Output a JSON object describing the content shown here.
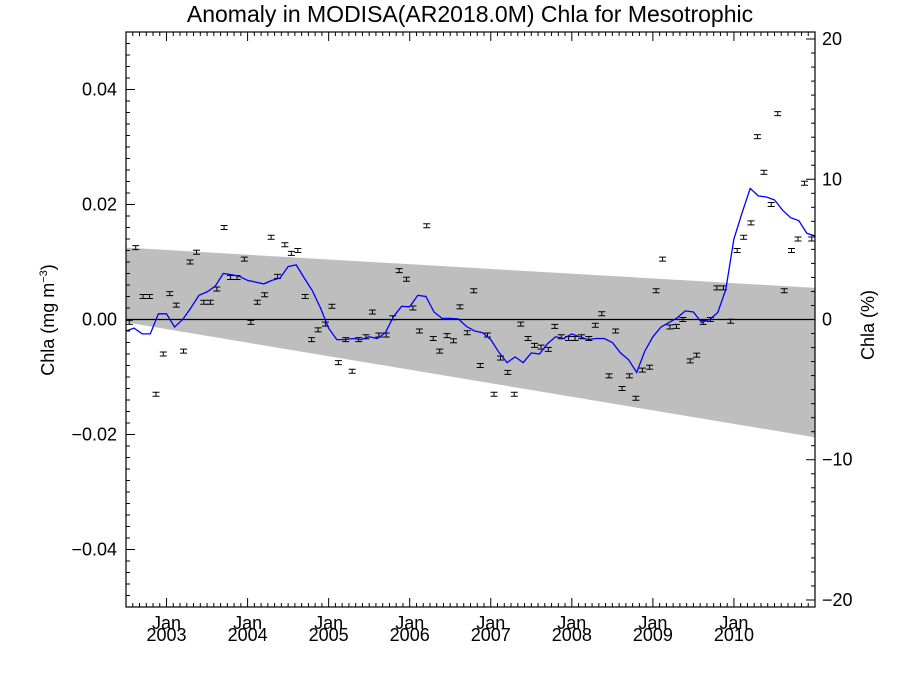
{
  "chart_data": {
    "type": "line",
    "title": "Anomaly in MODISA(AR2018.0M) Chla for Mesotrophic",
    "ylabel_left": {
      "main": "Chla (mg m",
      "sup": "−3",
      "end": ")"
    },
    "ylabel_right": "Chla (%)",
    "xlim": [
      2002.5,
      2011.0
    ],
    "ylim_left": [
      -0.05,
      0.05
    ],
    "ylim_right": [
      -20.5,
      20.5
    ],
    "y_left_ticks": [
      0.04,
      0.02,
      0.0,
      -0.02,
      -0.04
    ],
    "y_left_tick_labels": [
      "0.04",
      "0.02",
      "0.00",
      "−0.02",
      "−0.04"
    ],
    "y_right_ticks": [
      20,
      10,
      0,
      -10,
      -20
    ],
    "y_right_tick_labels": [
      "20",
      "10",
      "0",
      "−10",
      "−20"
    ],
    "x_ticks": [
      2003,
      2004,
      2005,
      2006,
      2007,
      2008,
      2009,
      2010
    ],
    "x_tick_months": [
      "Jan",
      "Jan",
      "Jan",
      "Jan",
      "Jan",
      "Jan",
      "Jan",
      "Jan"
    ],
    "x_tick_years": [
      "2003",
      "2004",
      "2005",
      "2006",
      "2007",
      "2008",
      "2009",
      "2010"
    ],
    "band": {
      "left": [
        0.0125,
        -0.0005
      ],
      "right": [
        0.0055,
        -0.0205
      ]
    },
    "colors": {
      "line": "#0000ff",
      "band": "#bebebe",
      "points": "#000000"
    },
    "series": [
      {
        "kind": "monthly-points",
        "x": [
          2002.54,
          2002.62,
          2002.71,
          2002.79,
          2002.87,
          2002.96,
          2003.04,
          2003.12,
          2003.21,
          2003.29,
          2003.37,
          2003.46,
          2003.54,
          2003.62,
          2003.71,
          2003.79,
          2003.87,
          2003.96,
          2004.04,
          2004.12,
          2004.21,
          2004.29,
          2004.37,
          2004.46,
          2004.54,
          2004.62,
          2004.71,
          2004.79,
          2004.87,
          2004.96,
          2005.04,
          2005.12,
          2005.21,
          2005.29,
          2005.37,
          2005.46,
          2005.54,
          2005.62,
          2005.71,
          2005.79,
          2005.87,
          2005.96,
          2006.04,
          2006.12,
          2006.21,
          2006.29,
          2006.37,
          2006.46,
          2006.54,
          2006.62,
          2006.71,
          2006.79,
          2006.87,
          2006.96,
          2007.04,
          2007.12,
          2007.21,
          2007.29,
          2007.37,
          2007.46,
          2007.54,
          2007.62,
          2007.71,
          2007.79,
          2007.87,
          2007.96,
          2008.04,
          2008.12,
          2008.21,
          2008.29,
          2008.37,
          2008.46,
          2008.54,
          2008.62,
          2008.71,
          2008.79,
          2008.87,
          2008.96,
          2009.04,
          2009.12,
          2009.21,
          2009.29,
          2009.37,
          2009.46,
          2009.54,
          2009.62,
          2009.71,
          2009.79,
          2009.87,
          2009.96,
          2010.04,
          2010.12,
          2010.21,
          2010.29,
          2010.37,
          2010.46,
          2010.54,
          2010.62,
          2010.71,
          2010.79,
          2010.87,
          2010.96
        ],
        "y": [
          -0.0005,
          0.0125,
          0.004,
          0.004,
          -0.013,
          -0.006,
          0.0045,
          0.0025,
          -0.0055,
          0.01,
          0.0117,
          0.003,
          0.003,
          0.0053,
          0.016,
          0.0073,
          0.0073,
          0.0105,
          -0.0005,
          0.003,
          0.0043,
          0.0143,
          0.0075,
          0.013,
          0.0115,
          0.012,
          0.004,
          -0.0035,
          -0.0018,
          -0.0008,
          0.0023,
          -0.0075,
          -0.0035,
          -0.009,
          -0.0035,
          -0.003,
          0.0013,
          -0.0027,
          -0.0027,
          0.0003,
          0.0085,
          0.007,
          0.002,
          -0.002,
          0.0163,
          -0.0033,
          -0.0055,
          -0.0028,
          -0.0037,
          0.0022,
          -0.0023,
          0.005,
          -0.008,
          -0.0027,
          -0.013,
          -0.0067,
          -0.0092,
          -0.013,
          -0.0008,
          -0.0033,
          -0.0045,
          -0.0048,
          -0.0052,
          -0.0012,
          -0.003,
          -0.0033,
          -0.0033,
          -0.003,
          -0.0033,
          -0.001,
          0.001,
          -0.0098,
          -0.002,
          -0.012,
          -0.0098,
          -0.0137,
          -0.0088,
          -0.0083,
          0.005,
          0.0105,
          -0.0013,
          -0.0012,
          0.0,
          -0.0072,
          -0.0062,
          -0.0005,
          0.0,
          0.0055,
          0.0055,
          -0.0003,
          0.012,
          0.0143,
          0.0168,
          0.0318,
          0.0256,
          0.02,
          0.0358,
          0.005,
          0.012,
          0.014,
          0.0237,
          0.014
        ]
      },
      {
        "kind": "running-mean",
        "x": [
          2002.5,
          2002.6,
          2002.7,
          2002.8,
          2002.9,
          2003.0,
          2003.1,
          2003.2,
          2003.3,
          2003.4,
          2003.5,
          2003.6,
          2003.7,
          2003.8,
          2003.9,
          2004.0,
          2004.1,
          2004.2,
          2004.3,
          2004.4,
          2004.5,
          2004.6,
          2004.7,
          2004.8,
          2004.9,
          2005.0,
          2005.1,
          2005.2,
          2005.3,
          2005.4,
          2005.5,
          2005.6,
          2005.7,
          2005.8,
          2005.9,
          2006.0,
          2006.1,
          2006.2,
          2006.3,
          2006.4,
          2006.5,
          2006.6,
          2006.7,
          2006.8,
          2006.9,
          2007.0,
          2007.1,
          2007.2,
          2007.3,
          2007.4,
          2007.5,
          2007.6,
          2007.7,
          2007.8,
          2007.9,
          2008.0,
          2008.1,
          2008.2,
          2008.3,
          2008.4,
          2008.5,
          2008.6,
          2008.7,
          2008.8,
          2008.9,
          2009.0,
          2009.1,
          2009.2,
          2009.3,
          2009.4,
          2009.5,
          2009.6,
          2009.7,
          2009.8,
          2009.9,
          2010.0,
          2010.1,
          2010.2,
          2010.3,
          2010.4,
          2010.5,
          2010.6,
          2010.7,
          2010.8,
          2010.9,
          2011.0
        ],
        "y": [
          -0.002,
          -0.0015,
          -0.0025,
          -0.0025,
          0.001,
          0.001,
          -0.0013,
          0.0,
          0.002,
          0.0042,
          0.0048,
          0.0058,
          0.008,
          0.0078,
          0.0075,
          0.0068,
          0.0065,
          0.0062,
          0.0068,
          0.0072,
          0.0092,
          0.0095,
          0.0072,
          0.005,
          0.002,
          -0.0015,
          -0.0035,
          -0.0035,
          -0.0033,
          -0.0035,
          -0.003,
          -0.0033,
          -0.0023,
          0.0005,
          0.0023,
          0.0022,
          0.0042,
          0.004,
          0.0013,
          0.0002,
          0.0002,
          0.0001,
          -0.0012,
          -0.002,
          -0.0023,
          -0.0035,
          -0.0057,
          -0.0075,
          -0.0065,
          -0.0075,
          -0.0058,
          -0.006,
          -0.0042,
          -0.003,
          -0.0033,
          -0.0025,
          -0.003,
          -0.0035,
          -0.0033,
          -0.0033,
          -0.004,
          -0.0058,
          -0.007,
          -0.0092,
          -0.0055,
          -0.003,
          -0.0013,
          -0.0005,
          0.0003,
          0.0015,
          0.0013,
          -0.0005,
          0.0,
          0.0012,
          0.0052,
          0.014,
          0.0185,
          0.0228,
          0.0215,
          0.0213,
          0.0208,
          0.019,
          0.0177,
          0.0172,
          0.015,
          0.0145
        ]
      }
    ]
  }
}
